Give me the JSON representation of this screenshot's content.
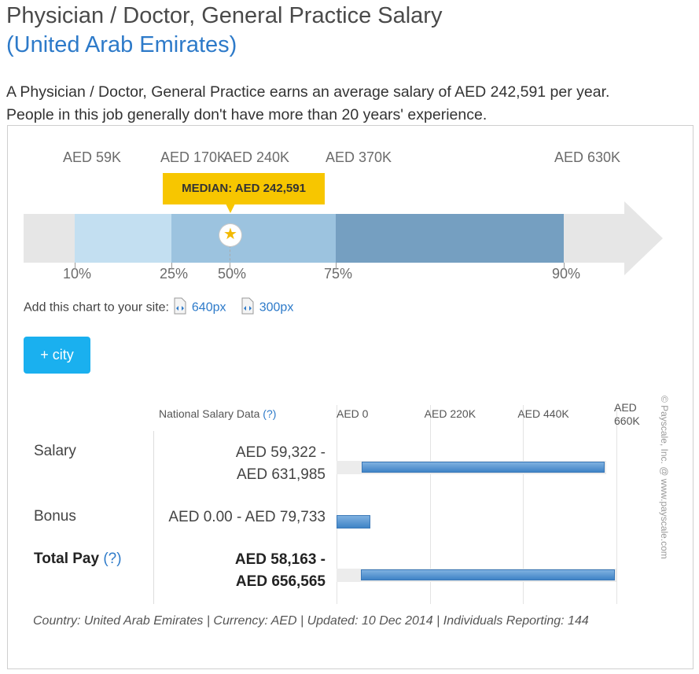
{
  "header": {
    "title": "Physician / Doctor, General Practice Salary",
    "subtitle": "(United Arab Emirates)",
    "intro_line1": "A Physician / Doctor, General Practice earns an average salary of AED 242,591 per year.",
    "intro_line2": "People in this job generally don't have more than 20 years' experience."
  },
  "colors": {
    "arrow": "#e6e6e6",
    "p10_25": "#c3dff1",
    "p25_75": "#9cc3df",
    "p75_90": "#759fc1",
    "median_badge": "#f7c600",
    "city_button": "#1ab0ef",
    "link": "#2d7ac9"
  },
  "chart_data": [
    {
      "type": "bar",
      "description_words": "percentile range arrow",
      "percentiles": [
        {
          "label": "10%",
          "value_label": "AED 59K",
          "value": 59000
        },
        {
          "label": "25%",
          "value_label": "AED 170K",
          "value": 170000
        },
        {
          "label": "50%",
          "value_label": "AED 240K",
          "value": 240000
        },
        {
          "label": "75%",
          "value_label": "AED 370K",
          "value": 370000
        },
        {
          "label": "90%",
          "value_label": "AED 630K",
          "value": 630000
        }
      ],
      "median_label": "MEDIAN: AED 242,591",
      "median_value": 242591
    },
    {
      "type": "bar",
      "header": "National Salary Data",
      "header_help": "(?)",
      "x_ticks": [
        "AED 0",
        "AED 220K",
        "AED 440K",
        "AED 660K"
      ],
      "x_tick_values": [
        0,
        220000,
        440000,
        660000
      ],
      "xlim": [
        0,
        660000
      ],
      "rows": [
        {
          "label": "Salary",
          "range_line1": "AED 59,322 -",
          "range_line2": "AED 631,985",
          "min": 59322,
          "max": 631985,
          "bold": false
        },
        {
          "label": "Bonus",
          "range_line1": "AED 0.00 - AED 79,733",
          "range_line2": "",
          "min": 0,
          "max": 79733,
          "bold": false
        },
        {
          "label": "Total Pay",
          "help": "(?)",
          "range_line1": "AED 58,163 -",
          "range_line2": "AED 656,565",
          "min": 58163,
          "max": 656565,
          "bold": true
        }
      ]
    }
  ],
  "embed": {
    "label": "Add this chart to your site:",
    "link1": "640px",
    "link2": "300px"
  },
  "city_button": "+ city",
  "footer": "Country: United Arab Emirates | Currency: AED | Updated: 10 Dec 2014 | Individuals Reporting: 144",
  "watermark": "© Payscale, Inc. @ www.payscale.com"
}
